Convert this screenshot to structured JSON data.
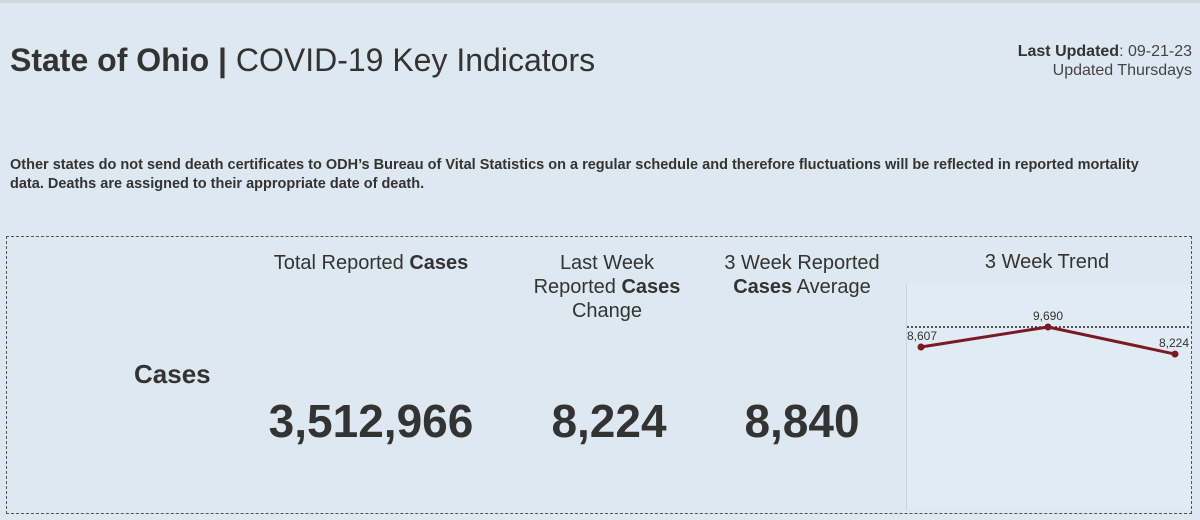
{
  "header": {
    "title_bold": "State of Ohio",
    "title_sep": " | ",
    "title_rest": "COVID-19 Key Indicators",
    "last_updated_label": "Last Updated",
    "last_updated_value": ": 09-21-23",
    "cadence": "Updated Thursdays"
  },
  "notice": "Other states do not send death certificates to ODH’s Bureau of Vital Statistics on a regular schedule and therefore fluctuations will be reflected in reported mortality data. Deaths are assigned to their appropriate date of death.",
  "indicators": {
    "row_label": "Cases",
    "total": {
      "h1": "Total Reported ",
      "h1b": "Cases",
      "value": "3,512,966"
    },
    "last_week": {
      "h1": "Last Week",
      "h2": "Reported ",
      "h2b": "Cases",
      "h3": "Change",
      "value": "8,224"
    },
    "three_week_avg": {
      "h1": "3 Week Reported",
      "h2b": "Cases",
      "h2": " Average",
      "value": "8,840"
    },
    "trend": {
      "title": "3 Week Trend"
    }
  },
  "chart_data": {
    "type": "line",
    "title": "3 Week Trend",
    "series": [
      {
        "values": [
          8607,
          9690,
          8224
        ]
      }
    ],
    "point_labels": [
      "8,607",
      "9,690",
      "8,224"
    ],
    "reference_line": 9690,
    "line_color": "#7a1a24",
    "ref_line_style": "dotted"
  },
  "colors": {
    "background": "#dde8f1",
    "trend_line": "#7a1a24",
    "text": "#333333"
  }
}
